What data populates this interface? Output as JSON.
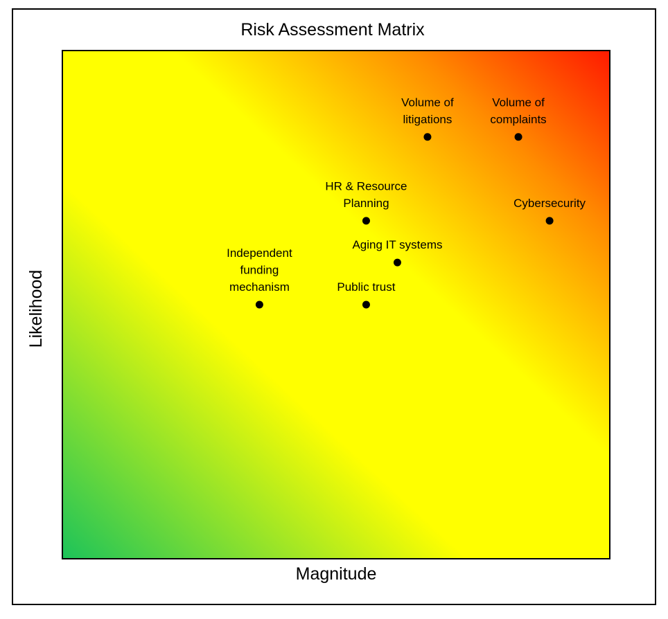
{
  "chart_data": {
    "type": "scatter",
    "title": "Risk Assessment Matrix",
    "xlabel": "Magnitude",
    "ylabel": "Likelihood",
    "xlim": [
      0,
      100
    ],
    "ylim": [
      0,
      100
    ],
    "grid": false,
    "background": {
      "type": "diagonal-gradient",
      "direction": "bottom-left-to-top-right",
      "colors": [
        "#1cc35a",
        "#ffff00",
        "#ffff00",
        "#ff8c00",
        "#ff1a00"
      ]
    },
    "marker_color": "#000000",
    "points": [
      {
        "label": [
          "Volume of",
          "litigations"
        ],
        "x": 66.7,
        "y": 83.0
      },
      {
        "label": [
          "Volume of",
          "complaints"
        ],
        "x": 83.3,
        "y": 83.0
      },
      {
        "label": [
          "HR & Resource",
          "Planning"
        ],
        "x": 55.5,
        "y": 66.5
      },
      {
        "label": [
          "Cybersecurity"
        ],
        "x": 89.0,
        "y": 66.5
      },
      {
        "label": [
          "Aging IT systems"
        ],
        "x": 61.2,
        "y": 58.3
      },
      {
        "label": [
          "Independent",
          "funding",
          "mechanism"
        ],
        "x": 36.0,
        "y": 50.0
      },
      {
        "label": [
          "Public trust"
        ],
        "x": 55.5,
        "y": 50.0
      }
    ]
  }
}
